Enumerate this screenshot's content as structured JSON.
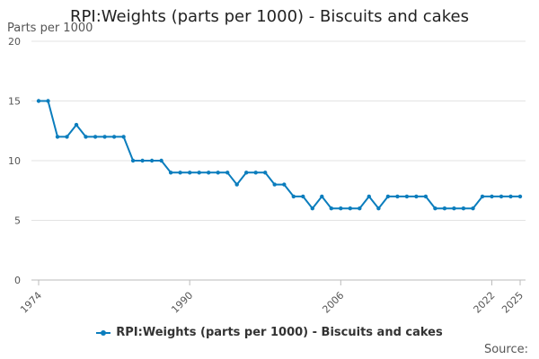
{
  "chart_data": {
    "type": "line",
    "title": "RPI:Weights (parts per 1000) - Biscuits and cakes",
    "ylabel": "Parts per 1000",
    "xlabel": "",
    "ylim": [
      0,
      20
    ],
    "yticks": [
      0,
      5,
      10,
      15,
      20
    ],
    "xlim": [
      1974,
      2025
    ],
    "xticks": [
      1974,
      1990,
      2006,
      2022,
      2025
    ],
    "grid": true,
    "legend_position": "bottom",
    "series": [
      {
        "name": "RPI:Weights (parts per 1000) - Biscuits and cakes",
        "color": "#0b7dbd",
        "x": [
          1974,
          1975,
          1976,
          1977,
          1978,
          1979,
          1980,
          1981,
          1982,
          1983,
          1984,
          1985,
          1986,
          1987,
          1988,
          1989,
          1990,
          1991,
          1992,
          1993,
          1994,
          1995,
          1996,
          1997,
          1998,
          1999,
          2000,
          2001,
          2002,
          2003,
          2004,
          2005,
          2006,
          2007,
          2008,
          2009,
          2010,
          2011,
          2012,
          2013,
          2014,
          2015,
          2016,
          2017,
          2018,
          2019,
          2020,
          2021,
          2022,
          2023,
          2024,
          2025
        ],
        "values": [
          15,
          15,
          12,
          12,
          13,
          12,
          12,
          12,
          12,
          12,
          10,
          10,
          10,
          10,
          9,
          9,
          9,
          9,
          9,
          9,
          9,
          8,
          9,
          9,
          9,
          8,
          8,
          7,
          7,
          6,
          7,
          6,
          6,
          6,
          6,
          7,
          6,
          7,
          7,
          7,
          7,
          7,
          6,
          6,
          6,
          6,
          6,
          7,
          7,
          7,
          7,
          7
        ]
      }
    ]
  },
  "source_label": "Source:"
}
